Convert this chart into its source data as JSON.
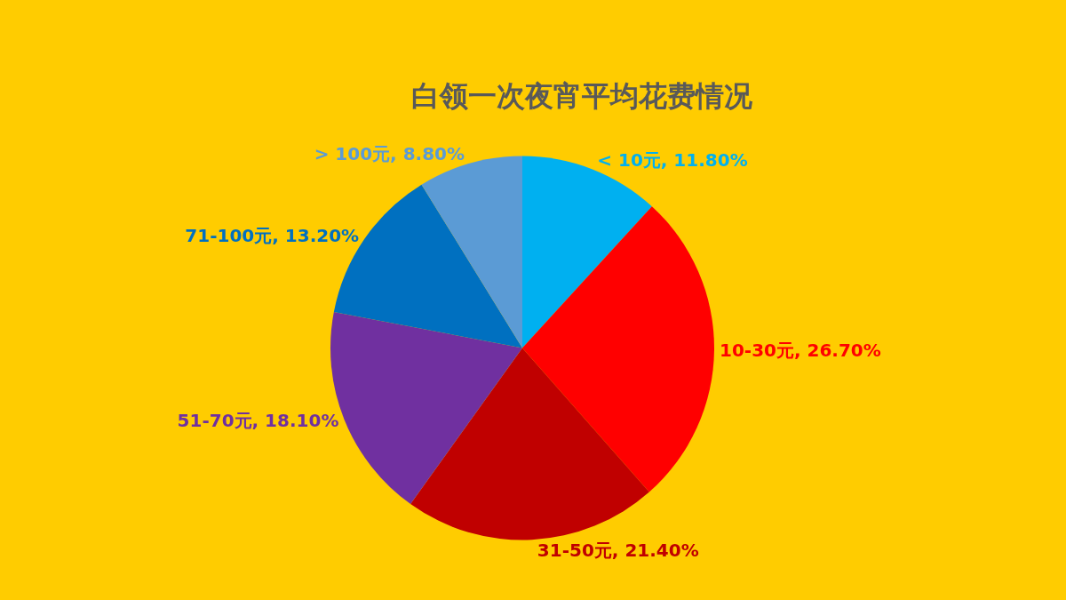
{
  "chart_data": {
    "type": "pie",
    "title": "白领一次夜宵平均花费情况",
    "categories": [
      "< 10元",
      "10-30元",
      "31-50元",
      "51-70元",
      "71-100元",
      "> 100元"
    ],
    "values": [
      11.8,
      26.7,
      21.4,
      18.1,
      13.2,
      8.8
    ],
    "value_labels": [
      "11.80%",
      "26.70%",
      "21.40%",
      "18.10%",
      "13.20%",
      "8.80%"
    ],
    "colors": [
      "#00b0f0",
      "#ff0000",
      "#c00000",
      "#7030a0",
      "#0070c0",
      "#5b9bd5"
    ],
    "legend": false
  }
}
